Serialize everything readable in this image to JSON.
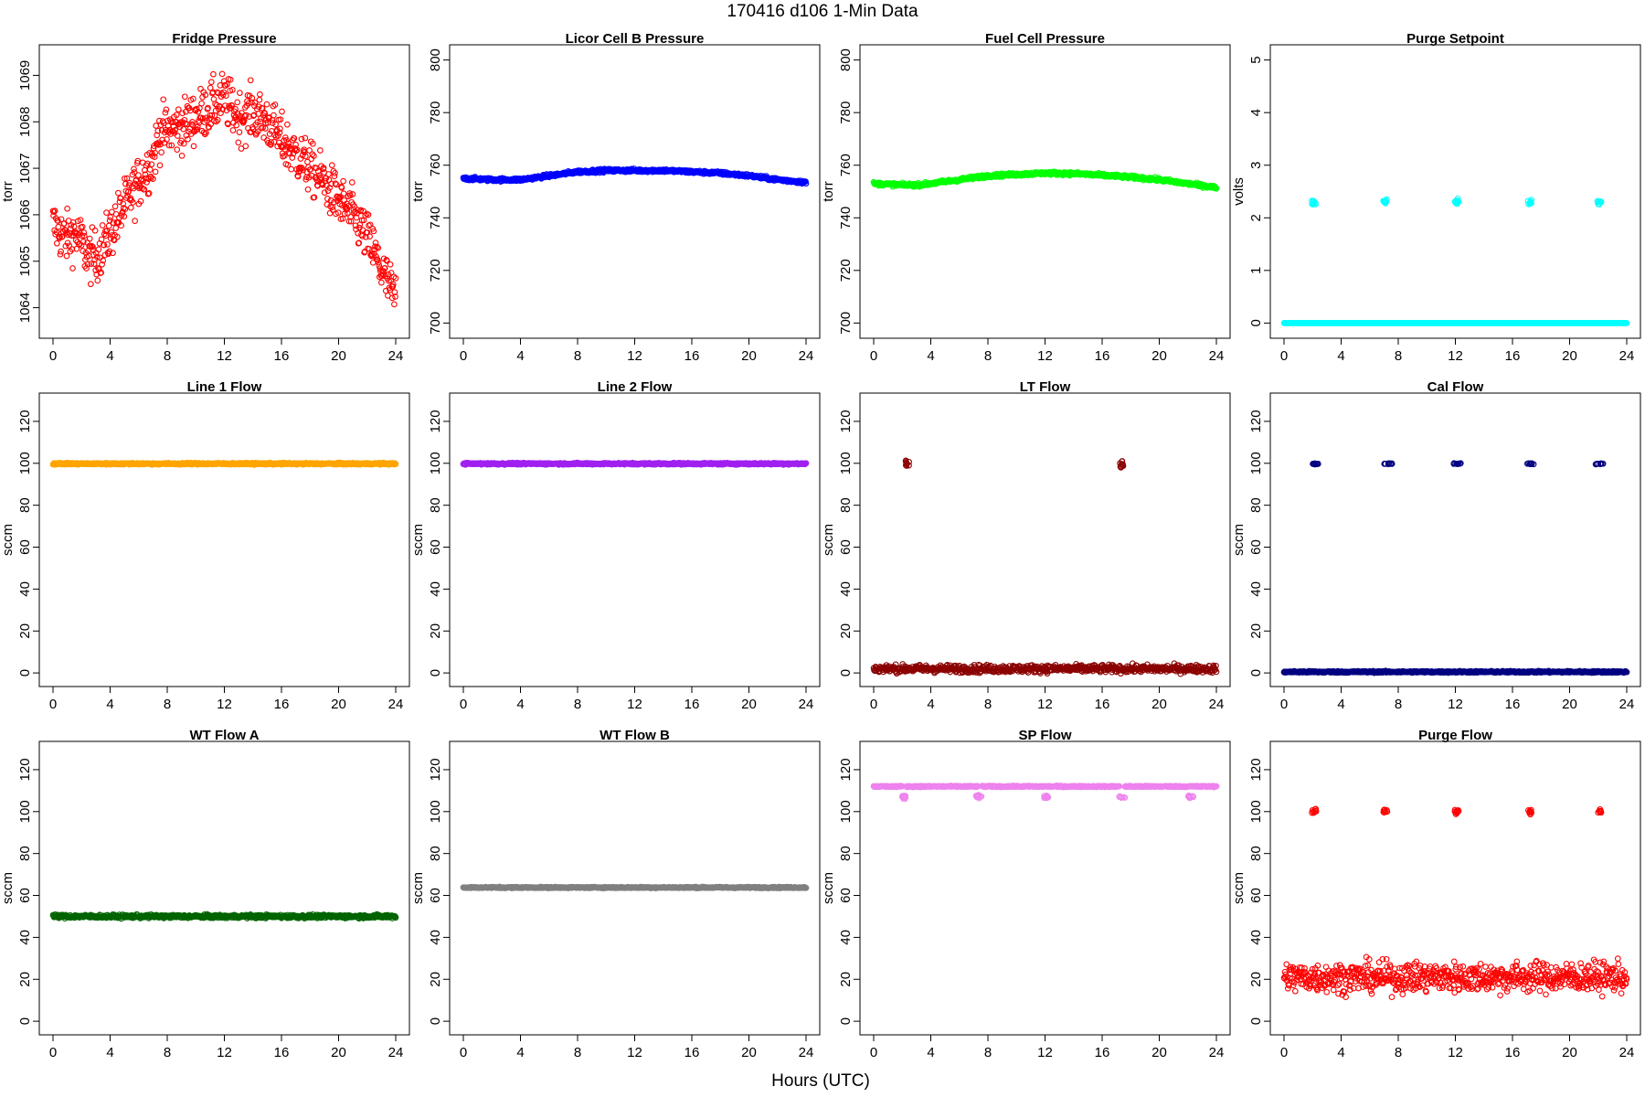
{
  "figure": {
    "title": "170416   d106   1-Min Data",
    "xlabel": "Hours (UTC)"
  },
  "chart_data": [
    {
      "type": "scatter",
      "title": "Fridge Pressure",
      "ylabel": "torr",
      "color": "#ff0000",
      "marker": "open-circle",
      "xlim": [
        0,
        24
      ],
      "xticks": [
        0,
        4,
        8,
        12,
        16,
        20,
        24
      ],
      "ylim": [
        1063.5,
        1069.5
      ],
      "yticks": [
        1064,
        1065,
        1066,
        1067,
        1068,
        1069
      ],
      "series": [
        {
          "kind": "curve",
          "x": [
            0,
            0.5,
            1,
            1.5,
            2,
            2.5,
            3,
            3.5,
            4,
            5,
            6,
            7,
            7.5,
            8,
            9,
            10,
            11,
            12,
            13,
            14,
            15,
            16,
            17,
            18,
            19,
            20,
            21,
            22,
            22.5,
            23,
            23.5,
            24
          ],
          "y": [
            1065.8,
            1065.6,
            1065.5,
            1065.6,
            1065.4,
            1065.1,
            1065.1,
            1065.3,
            1065.6,
            1066.2,
            1066.7,
            1067.2,
            1067.8,
            1067.8,
            1067.9,
            1068.1,
            1068.3,
            1068.5,
            1068.1,
            1068.2,
            1068.0,
            1067.6,
            1067.3,
            1067.0,
            1066.7,
            1066.3,
            1066.0,
            1065.5,
            1065.2,
            1064.8,
            1064.5,
            1064.2
          ],
          "spread": 0.55
        }
      ]
    },
    {
      "type": "scatter",
      "title": "Licor Cell B Pressure",
      "ylabel": "torr",
      "color": "#0000ff",
      "marker": "open-circle",
      "xlim": [
        0,
        24
      ],
      "xticks": [
        0,
        4,
        8,
        12,
        16,
        20,
        24
      ],
      "ylim": [
        697,
        803
      ],
      "yticks": [
        700,
        720,
        740,
        760,
        780,
        800
      ],
      "series": [
        {
          "kind": "curve",
          "x": [
            0,
            2,
            4,
            6,
            8,
            10,
            12,
            14,
            16,
            18,
            20,
            22,
            24
          ],
          "y": [
            755,
            754.5,
            754.5,
            756,
            757.5,
            758,
            758,
            758,
            757.5,
            757,
            756,
            754.5,
            753.5
          ],
          "spread": 0.6
        }
      ]
    },
    {
      "type": "scatter",
      "title": "Fuel Cell Pressure",
      "ylabel": "torr",
      "color": "#00ff00",
      "marker": "open-circle",
      "xlim": [
        0,
        24
      ],
      "xticks": [
        0,
        4,
        8,
        12,
        16,
        20,
        24
      ],
      "ylim": [
        697,
        803
      ],
      "yticks": [
        700,
        720,
        740,
        760,
        780,
        800
      ],
      "series": [
        {
          "kind": "curve",
          "x": [
            0,
            2,
            3,
            4,
            6,
            8,
            10,
            12,
            14,
            16,
            18,
            20,
            22,
            24
          ],
          "y": [
            753,
            752.5,
            752.5,
            753,
            754.5,
            756,
            756.5,
            757,
            756.8,
            756.2,
            755.5,
            754.5,
            753,
            751.5
          ],
          "spread": 0.6
        }
      ]
    },
    {
      "type": "scatter",
      "title": "Purge Setpoint",
      "ylabel": "volts",
      "color": "#00ffff",
      "marker": "open-circle",
      "xlim": [
        0,
        24
      ],
      "xticks": [
        0,
        4,
        8,
        12,
        16,
        20,
        24
      ],
      "ylim": [
        -0.15,
        5.15
      ],
      "yticks": [
        0,
        1,
        2,
        3,
        4,
        5
      ],
      "series": [
        {
          "kind": "curve",
          "x": [
            0,
            24
          ],
          "y": [
            0,
            0
          ],
          "spread": 0
        },
        {
          "kind": "clusters",
          "centers": [
            2.1,
            7.1,
            12.1,
            17.2,
            22.1
          ],
          "y": 2.3,
          "width": 0.3,
          "spread": 0.05
        }
      ]
    },
    {
      "type": "scatter",
      "title": "Line 1 Flow",
      "ylabel": "sccm",
      "color": "#ffa500",
      "marker": "open-circle",
      "xlim": [
        0,
        24
      ],
      "xticks": [
        0,
        4,
        8,
        12,
        16,
        20,
        24
      ],
      "ylim": [
        -3,
        130
      ],
      "yticks": [
        0,
        20,
        40,
        60,
        80,
        100,
        120
      ],
      "series": [
        {
          "kind": "curve",
          "x": [
            0,
            24
          ],
          "y": [
            99.8,
            99.8
          ],
          "spread": 0.4
        }
      ]
    },
    {
      "type": "scatter",
      "title": "Line 2 Flow",
      "ylabel": "sccm",
      "color": "#a020f0",
      "marker": "open-circle",
      "xlim": [
        0,
        24
      ],
      "xticks": [
        0,
        4,
        8,
        12,
        16,
        20,
        24
      ],
      "ylim": [
        -3,
        130
      ],
      "yticks": [
        0,
        20,
        40,
        60,
        80,
        100,
        120
      ],
      "series": [
        {
          "kind": "curve",
          "x": [
            0,
            24
          ],
          "y": [
            99.8,
            99.8
          ],
          "spread": 0.4
        }
      ]
    },
    {
      "type": "scatter",
      "title": "LT Flow",
      "ylabel": "sccm",
      "color": "#8b0000",
      "marker": "open-circle",
      "xlim": [
        0,
        24
      ],
      "xticks": [
        0,
        4,
        8,
        12,
        16,
        20,
        24
      ],
      "ylim": [
        -3,
        130
      ],
      "yticks": [
        0,
        20,
        40,
        60,
        80,
        100,
        120
      ],
      "series": [
        {
          "kind": "curve",
          "x": [
            0,
            24
          ],
          "y": [
            2,
            2
          ],
          "spread": 1.8
        },
        {
          "kind": "clusters",
          "centers": [
            2.35,
            17.35
          ],
          "y": 99.5,
          "width": 0.25,
          "spread": 1.8
        }
      ]
    },
    {
      "type": "scatter",
      "title": "Cal Flow",
      "ylabel": "sccm",
      "color": "#000080",
      "marker": "open-circle",
      "xlim": [
        0,
        24
      ],
      "xticks": [
        0,
        4,
        8,
        12,
        16,
        20,
        24
      ],
      "ylim": [
        -3,
        130
      ],
      "yticks": [
        0,
        20,
        40,
        60,
        80,
        100,
        120
      ],
      "series": [
        {
          "kind": "curve",
          "x": [
            0,
            24
          ],
          "y": [
            0.5,
            0.5
          ],
          "spread": 0.4
        },
        {
          "kind": "clusters",
          "centers": [
            2.2,
            7.3,
            12.1,
            17.3,
            22.1
          ],
          "y": 99.8,
          "width": 0.55,
          "spread": 0.3
        }
      ]
    },
    {
      "type": "scatter",
      "title": "WT Flow A",
      "ylabel": "sccm",
      "color": "#006400",
      "marker": "open-circle",
      "xlim": [
        0,
        24
      ],
      "xticks": [
        0,
        4,
        8,
        12,
        16,
        20,
        24
      ],
      "ylim": [
        -3,
        130
      ],
      "yticks": [
        0,
        20,
        40,
        60,
        80,
        100,
        120
      ],
      "series": [
        {
          "kind": "curve",
          "x": [
            0,
            24
          ],
          "y": [
            50,
            50
          ],
          "spread": 0.8
        }
      ]
    },
    {
      "type": "scatter",
      "title": "WT Flow B",
      "ylabel": "sccm",
      "color": "#808080",
      "marker": "open-circle",
      "xlim": [
        0,
        24
      ],
      "xticks": [
        0,
        4,
        8,
        12,
        16,
        20,
        24
      ],
      "ylim": [
        -3,
        130
      ],
      "yticks": [
        0,
        20,
        40,
        60,
        80,
        100,
        120
      ],
      "series": [
        {
          "kind": "curve",
          "x": [
            0,
            24
          ],
          "y": [
            63.8,
            63.8
          ],
          "spread": 0.3
        }
      ]
    },
    {
      "type": "scatter",
      "title": "SP Flow",
      "ylabel": "sccm",
      "color": "#ee82ee",
      "marker": "open-circle",
      "xlim": [
        0,
        24
      ],
      "xticks": [
        0,
        4,
        8,
        12,
        16,
        20,
        24
      ],
      "ylim": [
        -3,
        130
      ],
      "yticks": [
        0,
        20,
        40,
        60,
        80,
        100,
        120
      ],
      "series": [
        {
          "kind": "segments",
          "ranges": [
            [
              0,
              2
            ],
            [
              2.3,
              7.3
            ],
            [
              7.6,
              17.2
            ],
            [
              17.6,
              24
            ]
          ],
          "y": 112,
          "spread": 0.3
        },
        {
          "kind": "clusters",
          "centers": [
            2.2,
            7.35,
            12.1,
            17.4,
            22.2
          ],
          "y": 107,
          "width": 0.4,
          "spread": 0.8
        }
      ]
    },
    {
      "type": "scatter",
      "title": "Purge Flow",
      "ylabel": "sccm",
      "color": "#ff0000",
      "marker": "open-circle",
      "xlim": [
        0,
        24
      ],
      "xticks": [
        0,
        4,
        8,
        12,
        16,
        20,
        24
      ],
      "ylim": [
        -3,
        130
      ],
      "yticks": [
        0,
        20,
        40,
        60,
        80,
        100,
        120
      ],
      "series": [
        {
          "kind": "curve",
          "x": [
            0,
            24
          ],
          "y": [
            21,
            21
          ],
          "spread": 7
        },
        {
          "kind": "clusters",
          "centers": [
            2.1,
            7.1,
            12.1,
            17.2,
            22.1
          ],
          "y": 100,
          "width": 0.3,
          "spread": 1.2
        }
      ]
    }
  ]
}
